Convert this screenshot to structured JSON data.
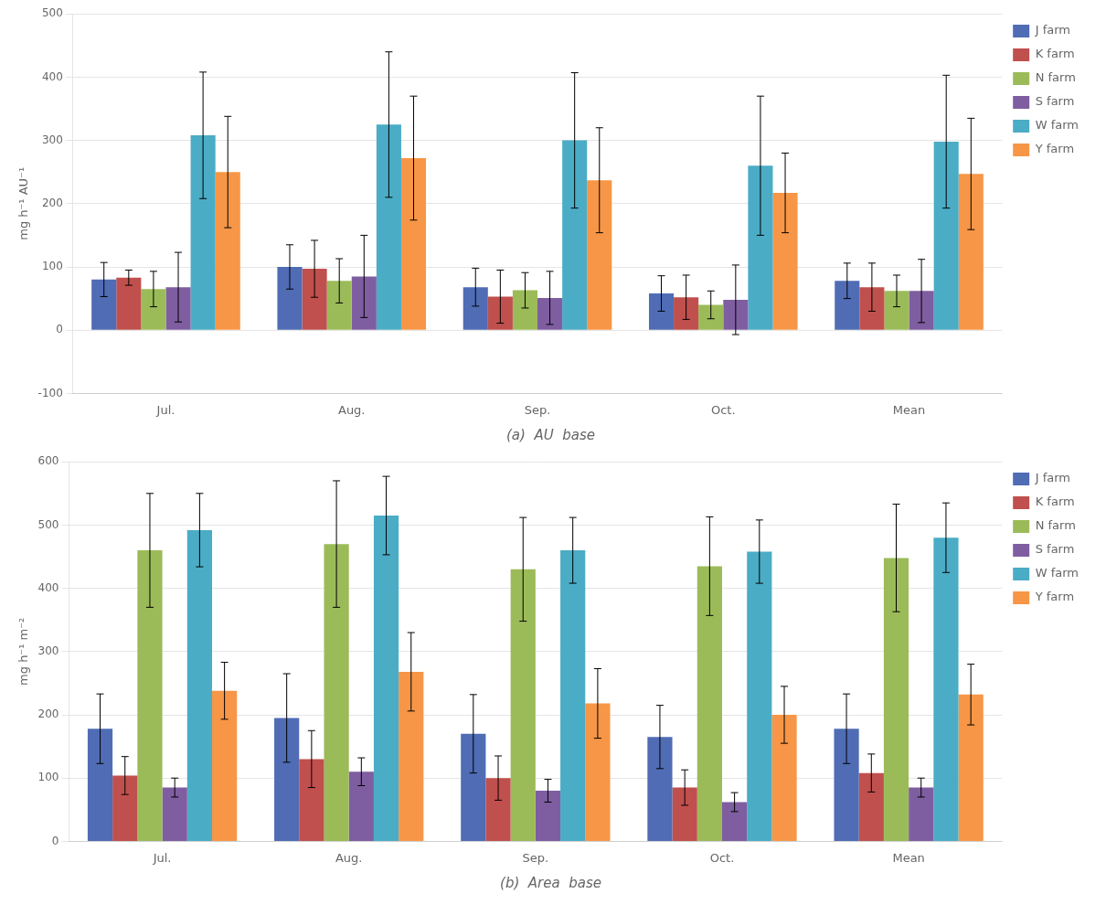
{
  "chart_data": [
    {
      "type": "bar",
      "title": "(a)  AU  base",
      "ylabel": "mg h⁻¹ AU⁻¹",
      "categories": [
        "Jul.",
        "Aug.",
        "Sep.",
        "Oct.",
        "Mean"
      ],
      "series": [
        {
          "name": "J farm",
          "color": "#4f6cb5",
          "values": [
            80,
            100,
            68,
            58,
            78
          ],
          "errors": [
            27,
            35,
            30,
            28,
            28
          ]
        },
        {
          "name": "K farm",
          "color": "#c0504d",
          "values": [
            83,
            97,
            53,
            52,
            68
          ],
          "errors": [
            12,
            45,
            42,
            35,
            38
          ]
        },
        {
          "name": "N farm",
          "color": "#9bbb59",
          "values": [
            65,
            78,
            63,
            40,
            62
          ],
          "errors": [
            28,
            35,
            28,
            22,
            25
          ]
        },
        {
          "name": "S farm",
          "color": "#7e5ea0",
          "values": [
            68,
            85,
            51,
            48,
            62
          ],
          "errors": [
            55,
            65,
            42,
            55,
            50
          ]
        },
        {
          "name": "W farm",
          "color": "#4bacc6",
          "values": [
            308,
            325,
            300,
            260,
            298
          ],
          "errors": [
            100,
            115,
            107,
            110,
            105
          ]
        },
        {
          "name": "Y farm",
          "color": "#f79646",
          "values": [
            250,
            272,
            237,
            217,
            247
          ],
          "errors": [
            88,
            98,
            83,
            63,
            88
          ]
        }
      ],
      "ylim": [
        -100,
        500
      ],
      "yticks": [
        -100,
        0,
        100,
        200,
        300,
        400,
        500
      ],
      "grid": true,
      "legend": "right"
    },
    {
      "type": "bar",
      "title": "(b)  Area  base",
      "ylabel": "mg h⁻¹ m⁻²",
      "categories": [
        "Jul.",
        "Aug.",
        "Sep.",
        "Oct.",
        "Mean"
      ],
      "series": [
        {
          "name": "J farm",
          "color": "#4f6cb5",
          "values": [
            178,
            195,
            170,
            165,
            178
          ],
          "errors": [
            55,
            70,
            62,
            50,
            55
          ]
        },
        {
          "name": "K farm",
          "color": "#c0504d",
          "values": [
            104,
            130,
            100,
            85,
            108
          ],
          "errors": [
            30,
            45,
            35,
            28,
            30
          ]
        },
        {
          "name": "N farm",
          "color": "#9bbb59",
          "values": [
            460,
            470,
            430,
            435,
            448
          ],
          "errors": [
            90,
            100,
            82,
            78,
            85
          ]
        },
        {
          "name": "S farm",
          "color": "#7e5ea0",
          "values": [
            85,
            110,
            80,
            62,
            85
          ],
          "errors": [
            15,
            22,
            18,
            15,
            15
          ]
        },
        {
          "name": "W farm",
          "color": "#4bacc6",
          "values": [
            492,
            515,
            460,
            458,
            480
          ],
          "errors": [
            58,
            62,
            52,
            50,
            55
          ]
        },
        {
          "name": "Y farm",
          "color": "#f79646",
          "values": [
            238,
            268,
            218,
            200,
            232
          ],
          "errors": [
            45,
            62,
            55,
            45,
            48
          ]
        }
      ],
      "ylim": [
        0,
        600
      ],
      "yticks": [
        0,
        100,
        200,
        300,
        400,
        500,
        600
      ],
      "grid": true,
      "legend": "right"
    }
  ]
}
